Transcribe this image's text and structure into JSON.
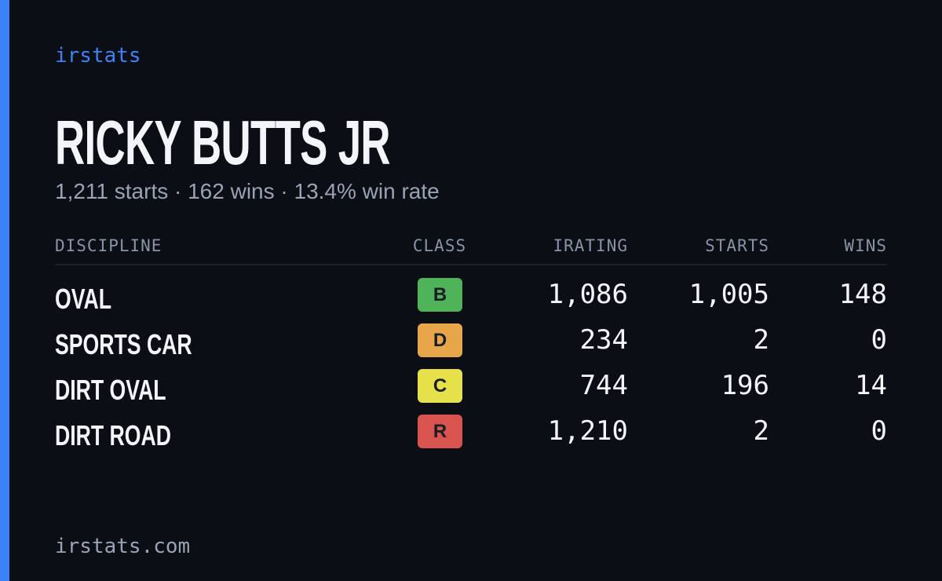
{
  "brand": "irstats",
  "name": "RICKY BUTTS JR",
  "summary": "1,211 starts · 162 wins · 13.4% win rate",
  "table": {
    "headers": [
      "DISCIPLINE",
      "CLASS",
      "IRATING",
      "STARTS",
      "WINS"
    ],
    "rows": [
      {
        "discipline": "OVAL",
        "class": "B",
        "class_color": "#4fb35a",
        "irating": "1,086",
        "starts": "1,005",
        "wins": "148"
      },
      {
        "discipline": "SPORTS CAR",
        "class": "D",
        "class_color": "#e8a64a",
        "irating": "234",
        "starts": "2",
        "wins": "0"
      },
      {
        "discipline": "DIRT OVAL",
        "class": "C",
        "class_color": "#e6e04a",
        "irating": "744",
        "starts": "196",
        "wins": "14"
      },
      {
        "discipline": "DIRT ROAD",
        "class": "R",
        "class_color": "#d9534f",
        "irating": "1,210",
        "starts": "2",
        "wins": "0"
      }
    ]
  },
  "footer": "irstats.com"
}
